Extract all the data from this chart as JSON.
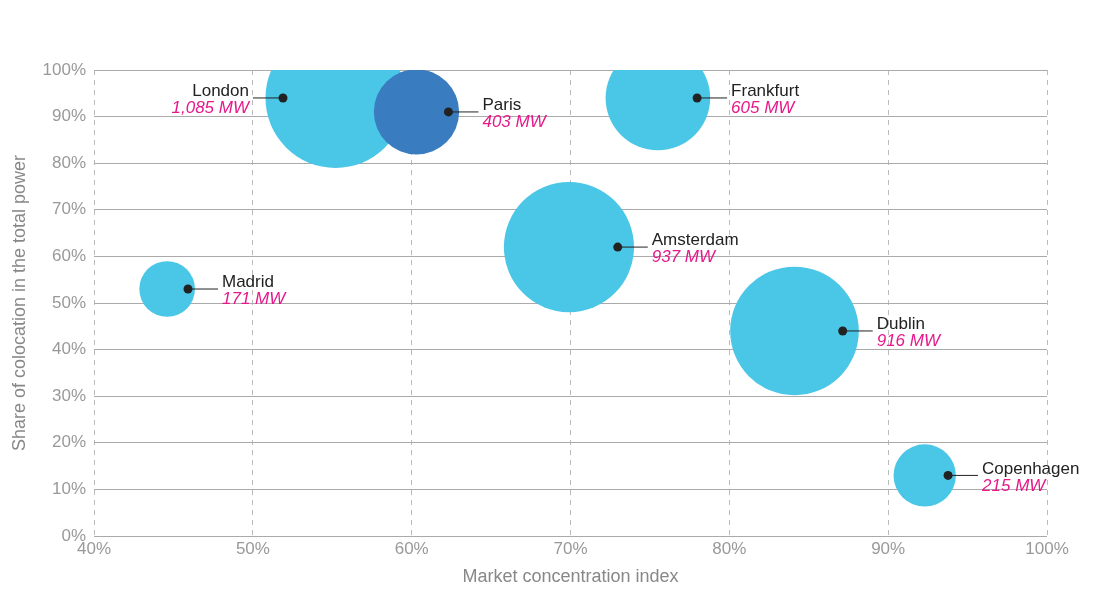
{
  "chart_data": {
    "type": "bubble",
    "xlabel": "Market concentration index",
    "ylabel": "Share of colocation in the total power",
    "series": [
      {
        "name": "Paris",
        "color": "#3a7cc0",
        "x": [
          60.3
        ],
        "values": [
          91
        ],
        "sizes": [
          0.371
        ]
      },
      {
        "name": "London",
        "color": "#4ac6e6",
        "x": [
          55.2
        ],
        "values": [
          94
        ],
        "sizes": [
          1
        ]
      },
      {
        "name": "Frankfurt",
        "color": "#4ac6e6",
        "x": [
          75.5
        ],
        "values": [
          94
        ],
        "sizes": [
          0.558
        ]
      },
      {
        "name": "Amsterdam",
        "color": "#4ac6e6",
        "x": [
          69.9
        ],
        "values": [
          62
        ],
        "sizes": [
          0.864
        ]
      },
      {
        "name": "Madrid",
        "color": "#4ac6e6",
        "x": [
          44.6
        ],
        "values": [
          53
        ],
        "sizes": [
          0.158
        ]
      },
      {
        "name": "Dublin",
        "color": "#4ac6e6",
        "x": [
          84.1
        ],
        "values": [
          44
        ],
        "sizes": [
          0.844
        ]
      },
      {
        "name": "Copenhagen",
        "color": "#4ac6e6",
        "x": [
          92.3
        ],
        "values": [
          13
        ],
        "sizes": [
          0.198
        ]
      }
    ],
    "annotations": [
      "403 MW",
      "1,085 MW",
      "605 MW",
      "937 MW",
      "171 MW",
      "916 MW",
      "215 MW"
    ],
    "xlim": [
      40,
      100
    ],
    "xticks": [
      {
        "value": 40,
        "label": "40%"
      },
      {
        "value": 50,
        "label": "50%"
      },
      {
        "value": 60,
        "label": "60%"
      },
      {
        "value": 70,
        "label": "70%"
      },
      {
        "value": 80,
        "label": "80%"
      },
      {
        "value": 90,
        "label": "90%"
      },
      {
        "value": 100,
        "label": "100%"
      }
    ],
    "ylim": [
      0,
      100
    ],
    "yticks": [
      {
        "value": 0,
        "label": "0%"
      },
      {
        "value": 10,
        "label": "10%"
      },
      {
        "value": 20,
        "label": "20%"
      },
      {
        "value": 30,
        "label": "30%"
      },
      {
        "value": 40,
        "label": "40%"
      },
      {
        "value": 50,
        "label": "50%"
      },
      {
        "value": 60,
        "label": "60%"
      },
      {
        "value": 70,
        "label": "70%"
      },
      {
        "value": 80,
        "label": "80%"
      },
      {
        "value": 90,
        "label": "90%"
      },
      {
        "value": 100,
        "label": "100%"
      }
    ],
    "grid": true,
    "legend": false
  }
}
